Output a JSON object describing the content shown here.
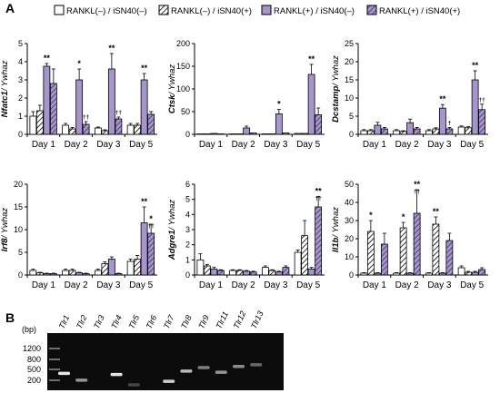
{
  "panel_labels": {
    "a": "A",
    "b": "B"
  },
  "colors": {
    "open": "#ffffff",
    "purple": "#a694cd",
    "purple_dark": "#6b55a0",
    "stroke": "#000000",
    "gel_bg": "#0c0c0c",
    "band": "#f2f2f2",
    "ladder": "#9a9a9a"
  },
  "legend": [
    {
      "label": "RANKL(–) / iSN40(–)",
      "fill": "open"
    },
    {
      "label": "RANKL(–) / iSN40(+)",
      "fill": "hatch-white"
    },
    {
      "label": "RANKL(+) / iSN40(–)",
      "fill": "purple"
    },
    {
      "label": "RANKL(+) / iSN40(+)",
      "fill": "hatch-purple"
    }
  ],
  "chart_data": [
    {
      "type": "bar",
      "ylabel_gene": "Nfatc1",
      "ylabel_ref": "/ Ywhaz",
      "categories": [
        "Day 1",
        "Day 2",
        "Day 3",
        "Day 5"
      ],
      "yticks": [
        0,
        1,
        2,
        3,
        4,
        5
      ],
      "ylim": [
        0,
        5
      ],
      "series": [
        {
          "values": [
            1.0,
            0.5,
            0.35,
            0.5
          ],
          "errors": [
            0.25,
            0.1,
            0.05,
            0.1
          ]
        },
        {
          "values": [
            1.3,
            0.3,
            0.2,
            0.5
          ],
          "errors": [
            0.3,
            0.08,
            0.05,
            0.1
          ]
        },
        {
          "values": [
            3.75,
            3.0,
            3.6,
            3.0
          ],
          "errors": [
            0.15,
            0.6,
            0.85,
            0.35
          ]
        },
        {
          "values": [
            2.8,
            0.55,
            0.85,
            1.1
          ],
          "errors": [
            0.8,
            0.15,
            0.1,
            0.15
          ]
        }
      ],
      "annotations": [
        {
          "cat": 0,
          "series": 2,
          "text": "**"
        },
        {
          "cat": 1,
          "series": 2,
          "text": "*"
        },
        {
          "cat": 1,
          "series": 3,
          "text": "††"
        },
        {
          "cat": 2,
          "series": 2,
          "text": "**"
        },
        {
          "cat": 2,
          "series": 3,
          "text": "††"
        },
        {
          "cat": 3,
          "series": 2,
          "text": "**"
        }
      ]
    },
    {
      "type": "bar",
      "ylabel_gene": "Ctsk",
      "ylabel_ref": "/ Ywhaz",
      "categories": [
        "Day 1",
        "Day 2",
        "Day 3",
        "Day 5"
      ],
      "yticks": [
        0,
        50,
        100,
        150,
        200
      ],
      "ylim": [
        0,
        200
      ],
      "series": [
        {
          "values": [
            1,
            1,
            1,
            2
          ],
          "errors": [
            0,
            0,
            0,
            0
          ]
        },
        {
          "values": [
            1,
            1,
            1,
            2
          ],
          "errors": [
            0,
            0,
            0,
            0
          ]
        },
        {
          "values": [
            2,
            14,
            45,
            132
          ],
          "errors": [
            0,
            4,
            10,
            22
          ]
        },
        {
          "values": [
            1,
            3,
            3,
            43
          ],
          "errors": [
            0,
            0,
            0,
            15
          ]
        }
      ],
      "annotations": [
        {
          "cat": 2,
          "series": 2,
          "text": "*"
        },
        {
          "cat": 3,
          "series": 2,
          "text": "**"
        }
      ]
    },
    {
      "type": "bar",
      "ylabel_gene": "Dcstamp",
      "ylabel_ref": "/ Ywhaz",
      "categories": [
        "Day 1",
        "Day 2",
        "Day 3",
        "Day 5"
      ],
      "yticks": [
        0,
        5,
        10,
        15,
        20,
        25
      ],
      "ylim": [
        0,
        25
      ],
      "series": [
        {
          "values": [
            1.0,
            1.0,
            1.0,
            2.0
          ],
          "errors": [
            0.3,
            0.3,
            0.3,
            0.3
          ]
        },
        {
          "values": [
            1.0,
            0.8,
            1.5,
            1.8
          ],
          "errors": [
            0.3,
            0.2,
            0.3,
            0.3
          ]
        },
        {
          "values": [
            2.5,
            3.2,
            7.2,
            15.0
          ],
          "errors": [
            0.8,
            1.0,
            1.0,
            2.5
          ]
        },
        {
          "values": [
            1.5,
            1.5,
            1.5,
            6.8
          ],
          "errors": [
            0.4,
            0.4,
            0.4,
            1.5
          ]
        }
      ],
      "annotations": [
        {
          "cat": 2,
          "series": 2,
          "text": "**"
        },
        {
          "cat": 2,
          "series": 3,
          "text": "†"
        },
        {
          "cat": 3,
          "series": 2,
          "text": "**"
        },
        {
          "cat": 3,
          "series": 3,
          "text": "††"
        }
      ]
    },
    {
      "type": "bar",
      "ylabel_gene": "Irf8",
      "ylabel_ref": "/ Ywhaz",
      "categories": [
        "Day 1",
        "Day 2",
        "Day 3",
        "Day 5"
      ],
      "yticks": [
        0,
        5,
        10,
        15,
        20
      ],
      "ylim": [
        0,
        20
      ],
      "series": [
        {
          "values": [
            1.0,
            1.0,
            1.0,
            3.0
          ],
          "errors": [
            0.3,
            0.3,
            0.3,
            0.5
          ]
        },
        {
          "values": [
            0.5,
            1.0,
            2.5,
            3.5
          ],
          "errors": [
            0.1,
            0.3,
            0.4,
            0.8
          ]
        },
        {
          "values": [
            0.3,
            0.5,
            3.5,
            11.5
          ],
          "errors": [
            0.1,
            0.1,
            0.5,
            3.5
          ]
        },
        {
          "values": [
            0.3,
            0.3,
            0.3,
            9.2
          ],
          "errors": [
            0.1,
            0.1,
            0.1,
            2.0
          ]
        }
      ],
      "annotations": [
        {
          "cat": 3,
          "series": 2,
          "text": "**"
        },
        {
          "cat": 3,
          "series": 3,
          "text": "*"
        },
        {
          "cat": 3,
          "series": 3,
          "text": "††",
          "offset": 1
        }
      ]
    },
    {
      "type": "bar",
      "ylabel_gene": "Adgre1",
      "ylabel_ref": "/ Ywhaz",
      "categories": [
        "Day 1",
        "Day 2",
        "Day 3",
        "Day 5"
      ],
      "yticks": [
        0,
        1,
        2,
        3,
        4,
        5,
        6
      ],
      "ylim": [
        0,
        6
      ],
      "series": [
        {
          "values": [
            1.0,
            0.3,
            0.5,
            1.5
          ],
          "errors": [
            0.4,
            0.05,
            0.1,
            0.15
          ]
        },
        {
          "values": [
            0.6,
            0.3,
            0.3,
            2.6
          ],
          "errors": [
            0.1,
            0.05,
            0.05,
            1.0
          ]
        },
        {
          "values": [
            0.4,
            0.25,
            0.2,
            0.4
          ],
          "errors": [
            0.1,
            0.05,
            0.05,
            0.1
          ]
        },
        {
          "values": [
            0.3,
            0.2,
            0.5,
            4.5
          ],
          "errors": [
            0.05,
            0.05,
            0.1,
            0.7
          ]
        }
      ],
      "annotations": [
        {
          "cat": 3,
          "series": 3,
          "text": "**"
        },
        {
          "cat": 3,
          "series": 3,
          "text": "††",
          "offset": 1
        }
      ]
    },
    {
      "type": "bar",
      "ylabel_gene": "Il1b",
      "ylabel_ref": "/ Ywhaz",
      "categories": [
        "Day 1",
        "Day 2",
        "Day 3",
        "Day 5"
      ],
      "yticks": [
        0,
        10,
        20,
        30,
        40,
        50
      ],
      "ylim": [
        0,
        50
      ],
      "series": [
        {
          "values": [
            1.0,
            1.0,
            1.0,
            4.0
          ],
          "errors": [
            0.3,
            0.3,
            0.3,
            1.0
          ]
        },
        {
          "values": [
            24,
            26,
            28,
            1.5
          ],
          "errors": [
            6,
            3,
            4,
            0.5
          ]
        },
        {
          "values": [
            1.0,
            1.0,
            1.0,
            1.5
          ],
          "errors": [
            0.3,
            0.3,
            0.3,
            0.5
          ]
        },
        {
          "values": [
            17,
            34,
            19,
            3.0
          ],
          "errors": [
            6,
            13,
            4,
            1.0
          ]
        }
      ],
      "annotations": [
        {
          "cat": 0,
          "series": 1,
          "text": "*"
        },
        {
          "cat": 1,
          "series": 1,
          "text": "*"
        },
        {
          "cat": 1,
          "series": 3,
          "text": "**"
        },
        {
          "cat": 1,
          "series": 3,
          "text": "††",
          "offset": 1
        },
        {
          "cat": 2,
          "series": 1,
          "text": "**"
        }
      ]
    }
  ],
  "gel": {
    "lanes": [
      "Tlr1",
      "Tlr2",
      "Tlr3",
      "Tlr4",
      "Tlr5",
      "Tlr6",
      "Tlr7",
      "Tlr8",
      "Tlr9",
      "Tlr11",
      "Tlr12",
      "Tlr13"
    ],
    "unit": "(bp)",
    "ladder_labels": [
      "1200",
      "800",
      "500",
      "200"
    ],
    "bands": [
      {
        "lane": 0,
        "level": 0.7,
        "intensity": 0.95
      },
      {
        "lane": 1,
        "level": 0.82,
        "intensity": 0.6
      },
      {
        "lane": 3,
        "level": 0.72,
        "intensity": 0.95
      },
      {
        "lane": 4,
        "level": 0.9,
        "intensity": 0.25
      },
      {
        "lane": 6,
        "level": 0.84,
        "intensity": 0.85
      },
      {
        "lane": 7,
        "level": 0.66,
        "intensity": 0.75
      },
      {
        "lane": 8,
        "level": 0.6,
        "intensity": 0.5
      },
      {
        "lane": 9,
        "level": 0.68,
        "intensity": 0.6
      },
      {
        "lane": 10,
        "level": 0.58,
        "intensity": 0.55
      },
      {
        "lane": 11,
        "level": 0.55,
        "intensity": 0.4
      }
    ]
  }
}
